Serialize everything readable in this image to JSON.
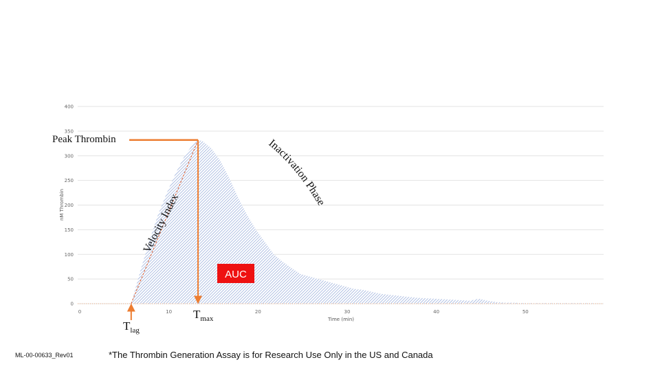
{
  "chart_data": {
    "type": "area",
    "xlabel": "Time (min)",
    "ylabel": "nM Thrombin",
    "xlim": [
      0,
      59
    ],
    "ylim": [
      0,
      400
    ],
    "x_ticks": [
      0,
      10,
      20,
      30,
      40,
      50
    ],
    "y_ticks": [
      0,
      50,
      100,
      150,
      200,
      250,
      300,
      350,
      400
    ],
    "grid": true,
    "fill_color": "#8fa6d8",
    "series": [
      {
        "x": [
          6,
          7,
          8,
          9,
          10,
          11,
          12,
          13,
          13.5,
          14,
          15,
          16,
          17,
          18,
          19,
          20,
          21,
          22,
          23,
          24,
          25,
          26,
          27,
          28,
          29,
          30,
          31,
          32,
          33,
          34,
          35,
          36,
          37,
          38,
          39,
          40,
          41,
          42,
          43,
          44,
          45,
          46,
          47,
          48,
          49,
          50,
          51,
          52,
          53,
          54,
          55,
          56,
          57,
          58
        ],
        "y": [
          0,
          65,
          125,
          180,
          225,
          265,
          300,
          325,
          332,
          330,
          315,
          290,
          255,
          215,
          180,
          150,
          125,
          100,
          85,
          72,
          60,
          55,
          50,
          45,
          40,
          35,
          30,
          28,
          24,
          20,
          18,
          16,
          14,
          12,
          11,
          10,
          9,
          8,
          7,
          6,
          10,
          6,
          3,
          2,
          2,
          1,
          1,
          1,
          1,
          1,
          1,
          1,
          1,
          1
        ]
      }
    ],
    "annotations": {
      "peak_label": "Peak Thrombin",
      "velocity_label": "Velocity Index",
      "inactivation_label": "Inactivation Phase",
      "auc_label": "AUC",
      "tlag_main": "T",
      "tlag_sub": "lag",
      "tmax_main": "T",
      "tmax_sub": "max",
      "tlag_x": 6,
      "tmax_x": 13.5,
      "peak_value": 332,
      "arrow_color": "#ed7d31",
      "auc_color": "#ee1111"
    }
  },
  "footer": {
    "doc_id": "ML-00-00633_Rev01",
    "disclaimer": "*The Thrombin Generation Assay is for Research Use Only in the US and Canada"
  }
}
